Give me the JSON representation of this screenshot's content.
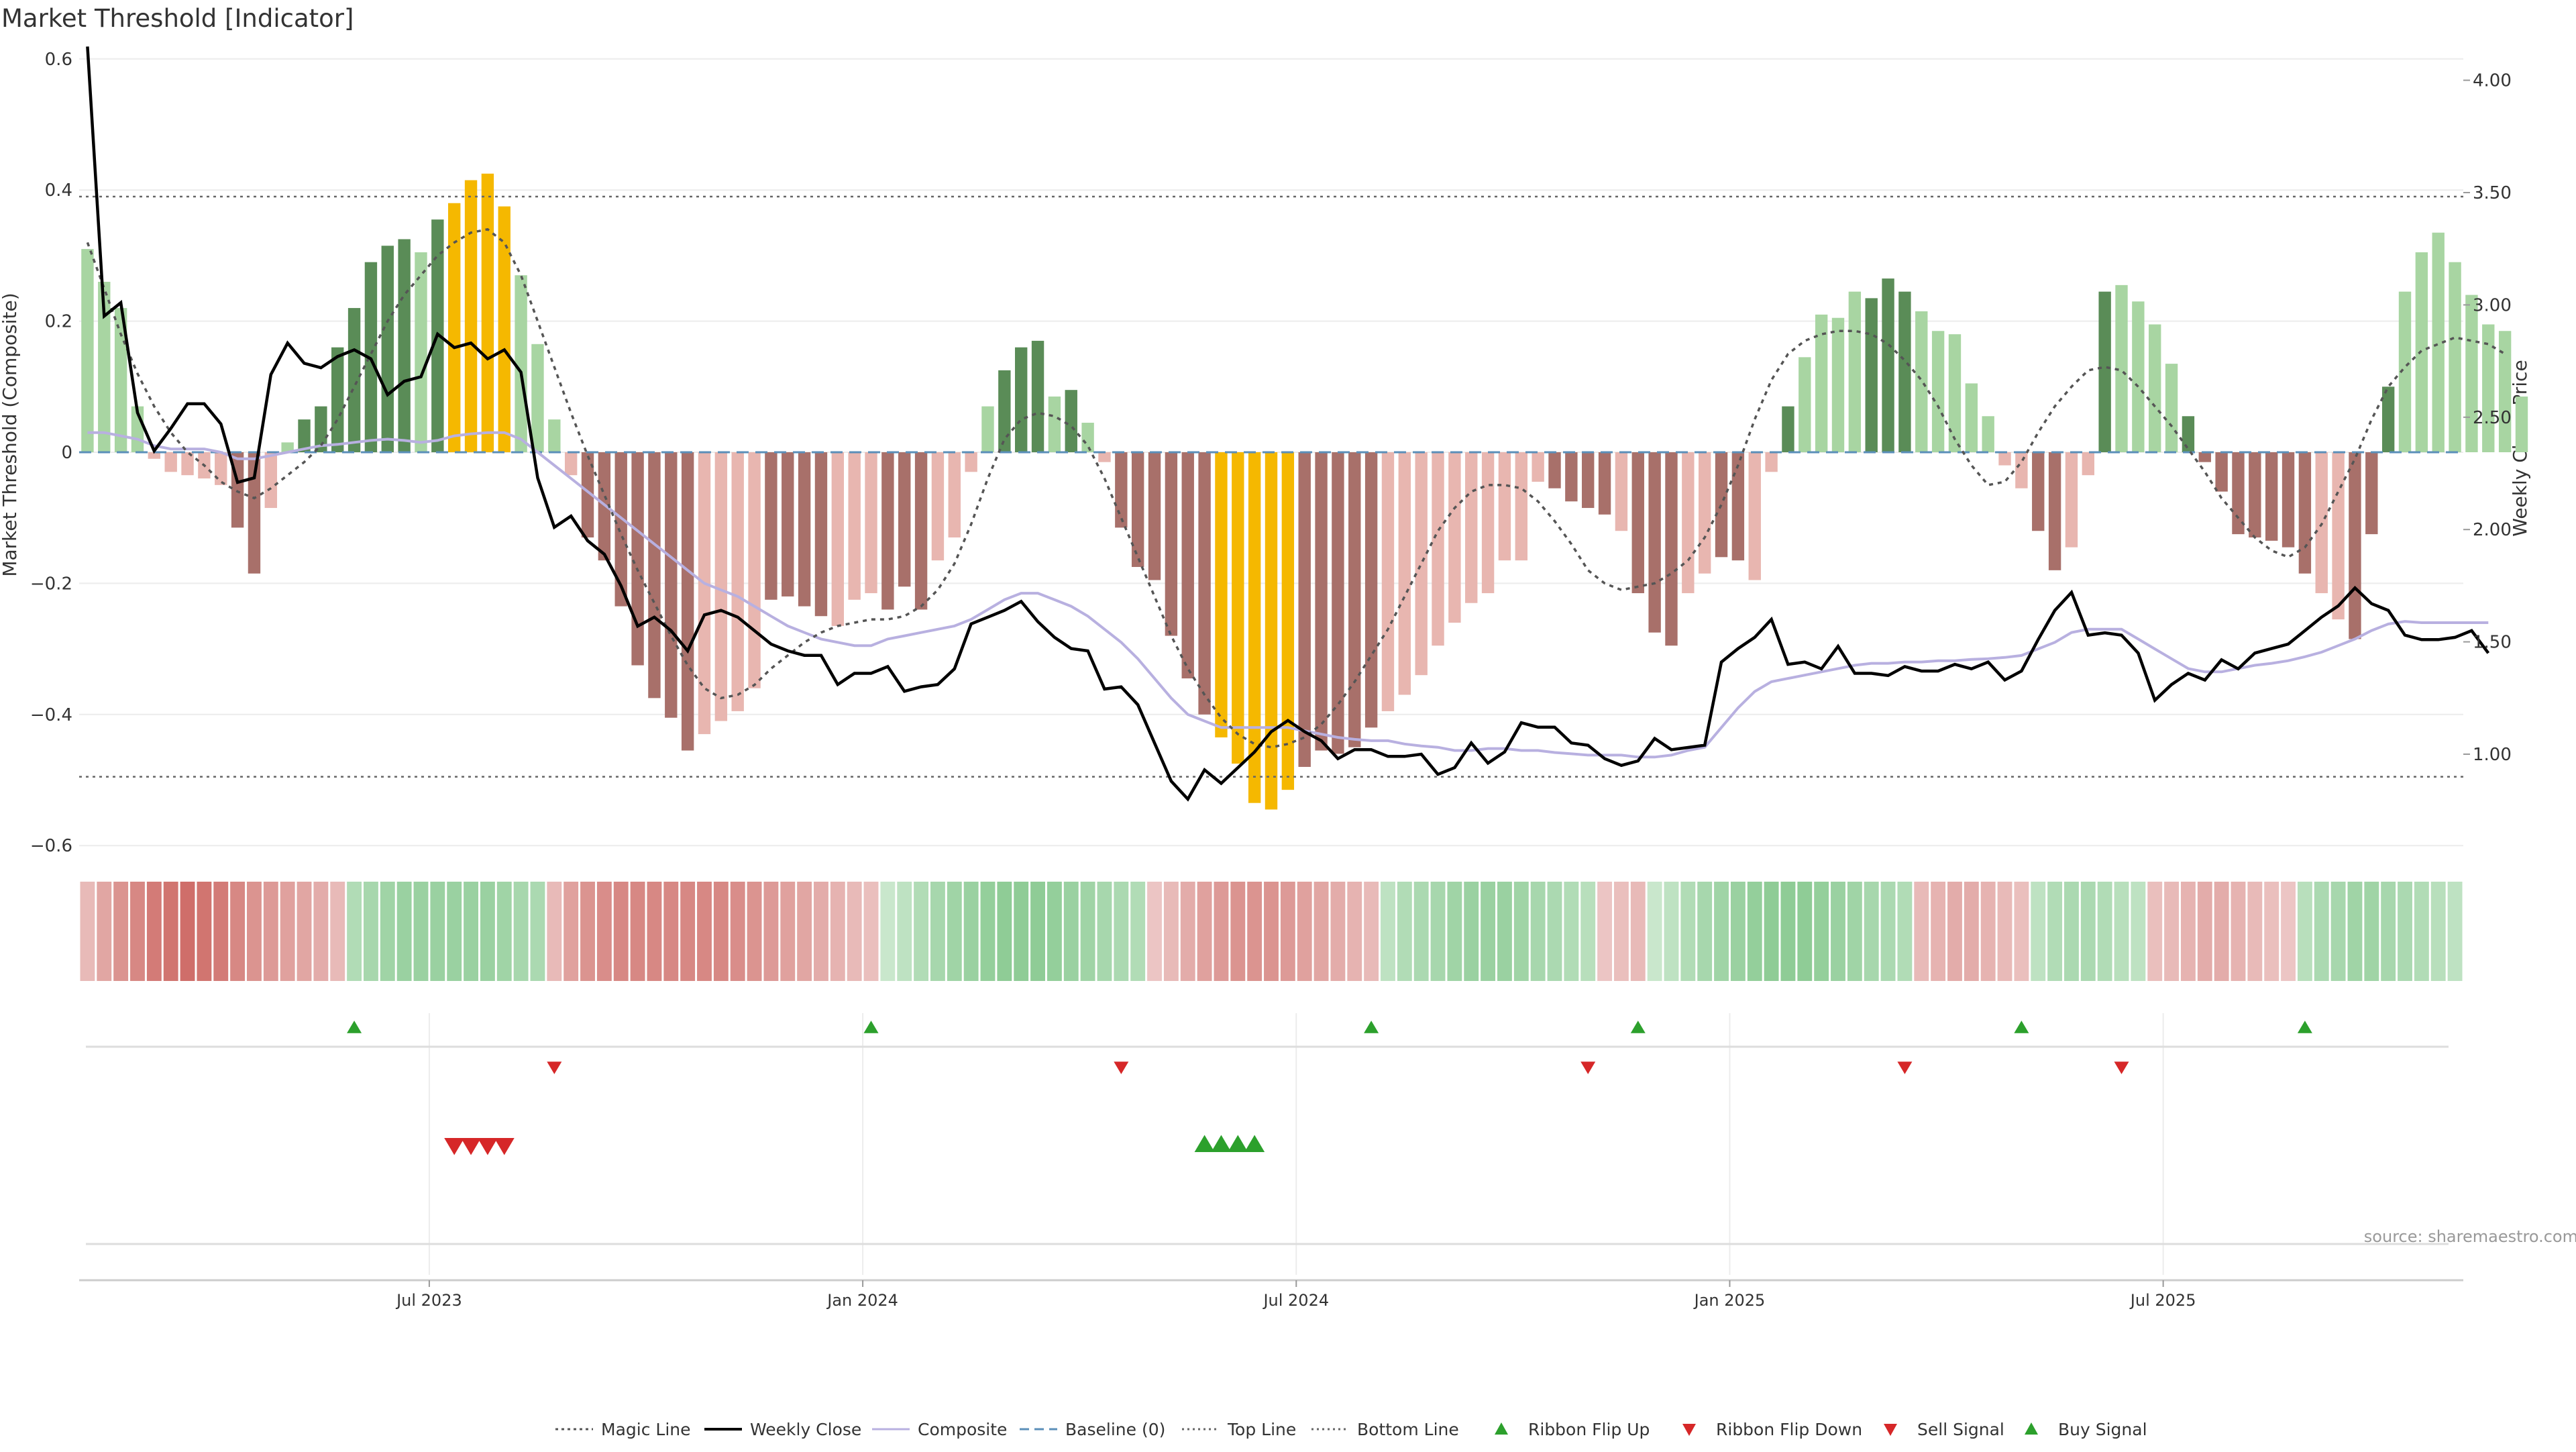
{
  "title": "Market Threshold [Indicator]",
  "source": "source: sharemaestro.com",
  "colors": {
    "strong_green": "#5a8c57",
    "light_green": "#a8d5a2",
    "strong_red": "#a8706a",
    "light_red": "#e8b6b0",
    "gold": "#f5b800",
    "composite": "#b8b0e0",
    "close": "#000000",
    "magic": "#555555",
    "baseline": "#5b8fb9",
    "threshold": "#666666",
    "signal_up": "#2ca02c",
    "signal_down": "#d62728"
  },
  "chart_data": {
    "type": "bar",
    "title": "Market Threshold [Indicator]",
    "x_ticks": [
      "Jul 2023",
      "Jan 2024",
      "Jul 2024",
      "Jan 2025",
      "Jul 2025"
    ],
    "x_tick_weeks": [
      21,
      47,
      73,
      99,
      125
    ],
    "weeks": 143,
    "left_axis": {
      "label": "Market Threshold (Composite)",
      "ylim": [
        -0.6,
        0.6
      ],
      "ticks": [
        "0.6",
        "0.4",
        "0.2",
        "0",
        "−0.2",
        "−0.4",
        "−0.6"
      ],
      "tick_values": [
        0.6,
        0.4,
        0.2,
        0,
        -0.2,
        -0.4,
        -0.6
      ]
    },
    "right_axis": {
      "label": "Weekly Close Price",
      "ylim": [
        0.6,
        4.1
      ],
      "ticks": [
        "4.00",
        "3.50",
        "3.00",
        "2.50",
        "2.00",
        "1.50",
        "1.00"
      ],
      "tick_values": [
        4.0,
        3.5,
        3.0,
        2.5,
        2.0,
        1.5,
        1.0
      ]
    },
    "top_line": 0.39,
    "bottom_line": -0.495,
    "baseline": 0,
    "histogram": [
      0.31,
      0.26,
      0.22,
      0.07,
      -0.01,
      -0.03,
      -0.035,
      -0.04,
      -0.05,
      -0.115,
      -0.185,
      -0.085,
      0.015,
      0.05,
      0.07,
      0.16,
      0.22,
      0.29,
      0.315,
      0.325,
      0.305,
      0.355,
      0.38,
      0.415,
      0.425,
      0.375,
      0.27,
      0.165,
      0.05,
      -0.035,
      -0.13,
      -0.165,
      -0.235,
      -0.325,
      -0.375,
      -0.405,
      -0.455,
      -0.43,
      -0.41,
      -0.395,
      -0.36,
      -0.225,
      -0.22,
      -0.235,
      -0.25,
      -0.265,
      -0.225,
      -0.215,
      -0.24,
      -0.205,
      -0.24,
      -0.165,
      -0.13,
      -0.03,
      0.07,
      0.125,
      0.16,
      0.17,
      0.085,
      0.095,
      0.045,
      -0.015,
      -0.115,
      -0.175,
      -0.195,
      -0.28,
      -0.345,
      -0.4,
      -0.435,
      -0.475,
      -0.535,
      -0.545,
      -0.515,
      -0.48,
      -0.455,
      -0.46,
      -0.45,
      -0.42,
      -0.395,
      -0.37,
      -0.34,
      -0.295,
      -0.26,
      -0.23,
      -0.215,
      -0.165,
      -0.165,
      -0.045,
      -0.055,
      -0.075,
      -0.085,
      -0.095,
      -0.12,
      -0.215,
      -0.275,
      -0.295,
      -0.215,
      -0.185,
      -0.16,
      -0.165,
      -0.195,
      -0.03,
      0.07,
      0.145,
      0.21,
      0.205,
      0.245,
      0.235,
      0.265,
      0.245,
      0.215,
      0.185,
      0.18,
      0.105,
      0.055,
      -0.02,
      -0.055,
      -0.12,
      -0.18,
      -0.145,
      -0.035,
      0.245,
      0.255,
      0.23,
      0.195,
      0.135,
      0.055,
      -0.015,
      -0.06,
      -0.125,
      -0.13,
      -0.135,
      -0.145,
      -0.185,
      -0.215,
      -0.255,
      -0.285,
      -0.125,
      0.1,
      0.245,
      0.305,
      0.335,
      0.29,
      0.24,
      0.195,
      0.185,
      0.085
    ],
    "histogram_shade": [
      1,
      1,
      1,
      1,
      1,
      1,
      1,
      1,
      1,
      0,
      0,
      1,
      1,
      0,
      0,
      0,
      0,
      0,
      0,
      0,
      1,
      0,
      2,
      2,
      2,
      2,
      1,
      1,
      1,
      1,
      0,
      0,
      0,
      0,
      0,
      0,
      0,
      1,
      1,
      1,
      1,
      0,
      0,
      0,
      0,
      1,
      1,
      1,
      0,
      0,
      0,
      1,
      1,
      1,
      1,
      0,
      0,
      0,
      1,
      0,
      1,
      1,
      0,
      0,
      0,
      0,
      0,
      0,
      2,
      2,
      2,
      2,
      2,
      0,
      0,
      0,
      0,
      0,
      1,
      1,
      1,
      1,
      1,
      1,
      1,
      1,
      1,
      1,
      0,
      0,
      0,
      0,
      1,
      0,
      0,
      0,
      1,
      1,
      0,
      0,
      1,
      1,
      0,
      1,
      1,
      1,
      1,
      0,
      0,
      0,
      1,
      1,
      1,
      1,
      1,
      1,
      1,
      0,
      0,
      1,
      1,
      0,
      1,
      1,
      1,
      1,
      0,
      0,
      0,
      0,
      0,
      0,
      0,
      0,
      1,
      1,
      0,
      0,
      0,
      1,
      1,
      1,
      1
    ],
    "weekly_close": [
      4.15,
      2.95,
      3.01,
      2.52,
      2.35,
      2.45,
      2.56,
      2.56,
      2.47,
      2.21,
      2.23,
      2.69,
      2.83,
      2.74,
      2.72,
      2.77,
      2.8,
      2.76,
      2.6,
      2.66,
      2.68,
      2.87,
      2.81,
      2.83,
      2.76,
      2.8,
      2.7,
      2.23,
      2.01,
      2.06,
      1.95,
      1.89,
      1.75,
      1.57,
      1.61,
      1.55,
      1.46,
      1.62,
      1.64,
      1.61,
      1.55,
      1.49,
      1.46,
      1.44,
      1.44,
      1.31,
      1.36,
      1.36,
      1.39,
      1.28,
      1.3,
      1.31,
      1.38,
      1.58,
      1.61,
      1.64,
      1.68,
      1.59,
      1.52,
      1.47,
      1.46,
      1.29,
      1.3,
      1.22,
      1.05,
      0.88,
      0.8,
      0.93,
      0.87,
      0.94,
      1.01,
      1.1,
      1.15,
      1.1,
      1.06,
      0.98,
      1.02,
      1.02,
      0.99,
      0.99,
      1.0,
      0.91,
      0.94,
      1.05,
      0.96,
      1.01,
      1.14,
      1.12,
      1.12,
      1.05,
      1.04,
      0.98,
      0.95,
      0.97,
      1.07,
      1.02,
      1.03,
      1.04,
      1.41,
      1.47,
      1.52,
      1.6,
      1.4,
      1.41,
      1.38,
      1.48,
      1.36,
      1.36,
      1.35,
      1.39,
      1.37,
      1.37,
      1.4,
      1.38,
      1.41,
      1.33,
      1.37,
      1.51,
      1.64,
      1.72,
      1.53,
      1.54,
      1.53,
      1.45,
      1.24,
      1.31,
      1.36,
      1.33,
      1.42,
      1.38,
      1.45,
      1.47,
      1.49,
      1.55,
      1.61,
      1.66,
      1.74,
      1.67,
      1.64,
      1.53,
      1.51,
      1.51,
      1.52,
      1.55,
      1.45
    ],
    "composite": [
      0.03,
      0.03,
      0.025,
      0.02,
      0.01,
      0.005,
      0.005,
      0.005,
      0.0,
      -0.01,
      -0.01,
      -0.005,
      0.0,
      0.005,
      0.01,
      0.012,
      0.015,
      0.018,
      0.02,
      0.018,
      0.015,
      0.018,
      0.025,
      0.028,
      0.03,
      0.03,
      0.02,
      0.0,
      -0.02,
      -0.04,
      -0.06,
      -0.08,
      -0.1,
      -0.12,
      -0.14,
      -0.16,
      -0.18,
      -0.2,
      -0.21,
      -0.22,
      -0.235,
      -0.25,
      -0.265,
      -0.275,
      -0.285,
      -0.29,
      -0.295,
      -0.295,
      -0.285,
      -0.28,
      -0.275,
      -0.27,
      -0.265,
      -0.255,
      -0.24,
      -0.225,
      -0.215,
      -0.215,
      -0.225,
      -0.235,
      -0.25,
      -0.27,
      -0.29,
      -0.315,
      -0.345,
      -0.375,
      -0.4,
      -0.41,
      -0.42,
      -0.42,
      -0.42,
      -0.42,
      -0.42,
      -0.425,
      -0.43,
      -0.435,
      -0.438,
      -0.44,
      -0.44,
      -0.445,
      -0.448,
      -0.45,
      -0.455,
      -0.455,
      -0.452,
      -0.452,
      -0.455,
      -0.455,
      -0.458,
      -0.46,
      -0.462,
      -0.462,
      -0.462,
      -0.465,
      -0.465,
      -0.462,
      -0.455,
      -0.45,
      -0.42,
      -0.39,
      -0.365,
      -0.35,
      -0.345,
      -0.34,
      -0.335,
      -0.33,
      -0.325,
      -0.322,
      -0.322,
      -0.32,
      -0.32,
      -0.318,
      -0.318,
      -0.316,
      -0.315,
      -0.313,
      -0.31,
      -0.3,
      -0.29,
      -0.275,
      -0.27,
      -0.27,
      -0.27,
      -0.285,
      -0.3,
      -0.315,
      -0.33,
      -0.335,
      -0.335,
      -0.33,
      -0.325,
      -0.322,
      -0.318,
      -0.312,
      -0.305,
      -0.295,
      -0.285,
      -0.272,
      -0.262,
      -0.258,
      -0.26,
      -0.26,
      -0.26,
      -0.26,
      -0.26
    ],
    "magic_line": [
      0.32,
      0.25,
      0.18,
      0.12,
      0.07,
      0.03,
      0.0,
      -0.02,
      -0.045,
      -0.06,
      -0.07,
      -0.055,
      -0.035,
      -0.015,
      0.01,
      0.05,
      0.1,
      0.15,
      0.2,
      0.24,
      0.27,
      0.3,
      0.32,
      0.335,
      0.34,
      0.32,
      0.27,
      0.2,
      0.13,
      0.06,
      -0.005,
      -0.065,
      -0.125,
      -0.18,
      -0.23,
      -0.28,
      -0.325,
      -0.36,
      -0.375,
      -0.37,
      -0.355,
      -0.33,
      -0.31,
      -0.29,
      -0.275,
      -0.265,
      -0.26,
      -0.255,
      -0.255,
      -0.25,
      -0.235,
      -0.21,
      -0.17,
      -0.11,
      -0.04,
      0.02,
      0.05,
      0.06,
      0.055,
      0.04,
      0.01,
      -0.04,
      -0.1,
      -0.16,
      -0.22,
      -0.28,
      -0.33,
      -0.37,
      -0.405,
      -0.43,
      -0.445,
      -0.45,
      -0.445,
      -0.435,
      -0.415,
      -0.385,
      -0.35,
      -0.31,
      -0.27,
      -0.22,
      -0.17,
      -0.12,
      -0.085,
      -0.06,
      -0.05,
      -0.05,
      -0.055,
      -0.075,
      -0.105,
      -0.14,
      -0.18,
      -0.2,
      -0.21,
      -0.205,
      -0.2,
      -0.185,
      -0.165,
      -0.13,
      -0.08,
      -0.02,
      0.05,
      0.11,
      0.15,
      0.17,
      0.18,
      0.185,
      0.185,
      0.18,
      0.165,
      0.14,
      0.11,
      0.07,
      0.02,
      -0.02,
      -0.05,
      -0.045,
      -0.015,
      0.03,
      0.07,
      0.1,
      0.125,
      0.13,
      0.125,
      0.1,
      0.07,
      0.04,
      0.005,
      -0.03,
      -0.07,
      -0.1,
      -0.13,
      -0.15,
      -0.16,
      -0.145,
      -0.11,
      -0.06,
      -0.01,
      0.05,
      0.1,
      0.13,
      0.155,
      0.165,
      0.175,
      0.17,
      0.165,
      0.15
    ],
    "ribbon": [
      -0.3,
      -0.45,
      -0.6,
      -0.7,
      -0.8,
      -0.85,
      -0.9,
      -0.85,
      -0.8,
      -0.7,
      -0.6,
      -0.55,
      -0.5,
      -0.45,
      -0.4,
      -0.3,
      0.4,
      0.5,
      0.55,
      0.6,
      0.6,
      0.6,
      0.6,
      0.6,
      0.6,
      0.55,
      0.5,
      0.45,
      -0.3,
      -0.5,
      -0.6,
      -0.65,
      -0.7,
      -0.7,
      -0.7,
      -0.7,
      -0.7,
      -0.7,
      -0.7,
      -0.65,
      -0.6,
      -0.55,
      -0.5,
      -0.45,
      -0.4,
      -0.35,
      -0.3,
      -0.25,
      0.2,
      0.3,
      0.4,
      0.5,
      0.55,
      0.6,
      0.65,
      0.7,
      0.7,
      0.7,
      0.65,
      0.6,
      0.55,
      0.5,
      0.45,
      0.4,
      -0.2,
      -0.3,
      -0.4,
      -0.5,
      -0.55,
      -0.6,
      -0.6,
      -0.6,
      -0.55,
      -0.5,
      -0.45,
      -0.4,
      -0.35,
      -0.3,
      0.3,
      0.4,
      0.45,
      0.5,
      0.55,
      0.6,
      0.6,
      0.6,
      0.55,
      0.5,
      0.45,
      0.4,
      0.35,
      -0.2,
      -0.25,
      -0.3,
      0.2,
      0.3,
      0.4,
      0.5,
      0.55,
      0.6,
      0.65,
      0.7,
      0.7,
      0.7,
      0.65,
      0.6,
      0.55,
      0.5,
      0.45,
      0.4,
      -0.3,
      -0.35,
      -0.4,
      -0.4,
      -0.35,
      -0.3,
      -0.25,
      0.3,
      0.4,
      0.45,
      0.45,
      0.4,
      0.35,
      0.3,
      -0.25,
      -0.3,
      -0.35,
      -0.4,
      -0.4,
      -0.35,
      -0.3,
      -0.25,
      -0.2,
      0.35,
      0.45,
      0.5,
      0.55,
      0.55,
      0.5,
      0.45,
      0.4,
      0.35,
      0.3
    ],
    "ribbon_flip_up": [
      16,
      47,
      77,
      93,
      116,
      133
    ],
    "ribbon_flip_down": [
      28,
      62,
      90,
      109,
      122
    ],
    "sell_signal": [
      22,
      23,
      24,
      25
    ],
    "buy_signal": [
      67,
      68,
      69,
      70
    ],
    "legend": [
      "Magic Line",
      "Weekly Close",
      "Composite",
      "Baseline (0)",
      "Top Line",
      "Bottom Line",
      "Ribbon Flip Up",
      "Ribbon Flip Down",
      "Sell Signal",
      "Buy Signal"
    ],
    "legend_placement": "bottom-center",
    "grid": true
  }
}
